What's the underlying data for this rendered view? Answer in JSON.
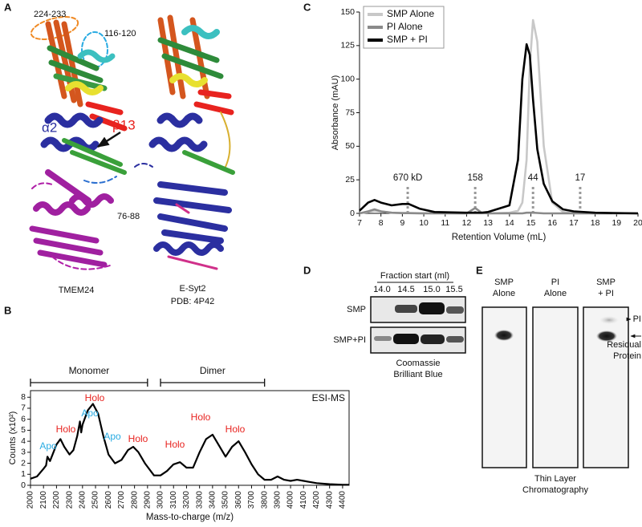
{
  "panel_labels": [
    "A",
    "B",
    "C",
    "D",
    "E"
  ],
  "panel_a": {
    "labels": [
      "224-233",
      "116-120",
      "α2",
      "β13",
      "76-88"
    ],
    "structures": [
      {
        "name": "TMEM24"
      },
      {
        "name": "E-Syt2",
        "pdb": "PDB: 4P42"
      }
    ]
  },
  "chart_data": [
    {
      "type": "line",
      "annotation": "ESI-MS",
      "x_label": "Mass-to-charge (m/z)",
      "y_label": "Counts (x10²)",
      "x": [
        2000,
        2050,
        2100,
        2120,
        2130,
        2150,
        2200,
        2230,
        2260,
        2300,
        2330,
        2360,
        2380,
        2390,
        2400,
        2440,
        2480,
        2520,
        2560,
        2600,
        2650,
        2700,
        2750,
        2790,
        2830,
        2880,
        2950,
        3000,
        3050,
        3100,
        3150,
        3200,
        3250,
        3300,
        3350,
        3400,
        3450,
        3500,
        3550,
        3600,
        3650,
        3700,
        3750,
        3800,
        3850,
        3900,
        3950,
        4000,
        4050,
        4100,
        4150,
        4200,
        4300,
        4400,
        4450
      ],
      "series": [
        {
          "color": "#000000",
          "values": [
            0.6,
            0.8,
            1.5,
            1.8,
            2.6,
            2.2,
            3.7,
            4.2,
            3.5,
            2.8,
            3.2,
            4.5,
            5.8,
            4.8,
            5.5,
            6.8,
            7.4,
            6.5,
            4.5,
            2.8,
            2.0,
            2.3,
            3.2,
            3.5,
            3.0,
            2.0,
            0.9,
            0.9,
            1.3,
            1.9,
            2.1,
            1.6,
            1.6,
            3.0,
            4.2,
            4.6,
            3.6,
            2.6,
            3.5,
            4.0,
            3.0,
            1.9,
            1.0,
            0.5,
            0.5,
            0.8,
            0.5,
            0.4,
            0.5,
            0.4,
            0.3,
            0.2,
            0.1,
            0.05,
            0.05
          ]
        }
      ],
      "xlim": [
        2000,
        4450
      ],
      "xticks": [
        2000,
        2100,
        2200,
        2300,
        2400,
        2500,
        2600,
        2700,
        2800,
        2900,
        3000,
        3100,
        3200,
        3300,
        3400,
        3500,
        3600,
        3700,
        3800,
        3900,
        4000,
        4100,
        4200,
        4300,
        4400
      ],
      "ylim": [
        0,
        8.6
      ],
      "yticks": [
        0,
        1,
        2,
        3,
        4,
        5,
        6,
        7,
        8
      ],
      "brackets": [
        {
          "label": "Monomer",
          "range": [
            2000,
            2900
          ]
        },
        {
          "label": "Dimer",
          "range": [
            3000,
            3800
          ]
        }
      ],
      "peak_labels": [
        {
          "label": "Apo",
          "color": "#29abe2"
        },
        {
          "label": "Holo",
          "color": "#e8231f"
        },
        {
          "label": "Apo",
          "color": "#29abe2"
        },
        {
          "label": "Holo",
          "color": "#e8231f"
        },
        {
          "label": "Apo",
          "color": "#29abe2"
        },
        {
          "label": "Holo",
          "color": "#e8231f"
        },
        {
          "label": "Holo",
          "color": "#e8231f"
        },
        {
          "label": "Holo",
          "color": "#e8231f"
        },
        {
          "label": "Holo",
          "color": "#e8231f"
        }
      ]
    },
    {
      "type": "line",
      "x_label": "Retention Volume (mL)",
      "y_label": "Absorbance (mAU)",
      "x": [
        7,
        7.4,
        7.7,
        8,
        8.5,
        9,
        9.3,
        9.8,
        10.5,
        12,
        12.4,
        12.7,
        13,
        14,
        14.4,
        14.6,
        14.8,
        14.95,
        15.1,
        15.3,
        15.6,
        16,
        16.5,
        17,
        18,
        20
      ],
      "series": [
        {
          "name": "SMP Alone",
          "color": "#c8c8c8",
          "values": [
            0,
            1,
            2,
            1.5,
            0.5,
            0.3,
            0.3,
            0.2,
            0,
            0,
            0,
            0,
            0,
            0.5,
            2,
            8,
            40,
            110,
            144,
            128,
            50,
            8,
            1,
            0,
            0,
            0
          ]
        },
        {
          "name": "PI Alone",
          "color": "#8a8a8a",
          "values": [
            0,
            1.5,
            3,
            1.5,
            0.5,
            0.2,
            0.2,
            0,
            0,
            0,
            4,
            0.5,
            0,
            0,
            0,
            0,
            0.5,
            0.5,
            0.5,
            0.3,
            0,
            0,
            0,
            0,
            0,
            0
          ]
        },
        {
          "name": "SMP + PI",
          "color": "#000000",
          "values": [
            2,
            8,
            10,
            8,
            6,
            7,
            7,
            3.5,
            1,
            0.5,
            0.5,
            0.5,
            1,
            6,
            40,
            100,
            126,
            118,
            85,
            48,
            22,
            9,
            3,
            1.5,
            0.5,
            0
          ]
        }
      ],
      "xlim": [
        7,
        20
      ],
      "xticks": [
        7,
        8,
        9,
        10,
        11,
        12,
        13,
        14,
        15,
        16,
        17,
        18,
        19,
        20
      ],
      "ylim": [
        0,
        150
      ],
      "yticks": [
        0,
        25,
        50,
        75,
        100,
        125,
        150
      ],
      "legend": "upper left",
      "markers": [
        {
          "label": "670 kD",
          "x": 9.25
        },
        {
          "label": "158",
          "x": 12.4
        },
        {
          "label": "44",
          "x": 15.1
        },
        {
          "label": "17",
          "x": 17.3
        }
      ]
    }
  ],
  "panel_d": {
    "header": "Fraction start (ml)",
    "columns": [
      "14.0",
      "14.5",
      "15.0",
      "15.5"
    ],
    "rows": [
      "SMP",
      "SMP+PI"
    ],
    "caption": [
      "Coomassie",
      "Brilliant Blue"
    ]
  },
  "panel_e": {
    "lanes": [
      [
        "SMP",
        "Alone"
      ],
      [
        "PI",
        "Alone"
      ],
      [
        "SMP",
        "+ PI"
      ]
    ],
    "spot_labels": {
      "pi": "PI",
      "protein": [
        "Residual",
        "Protein"
      ]
    },
    "caption": [
      "Thin Layer",
      "Chromatography"
    ]
  }
}
